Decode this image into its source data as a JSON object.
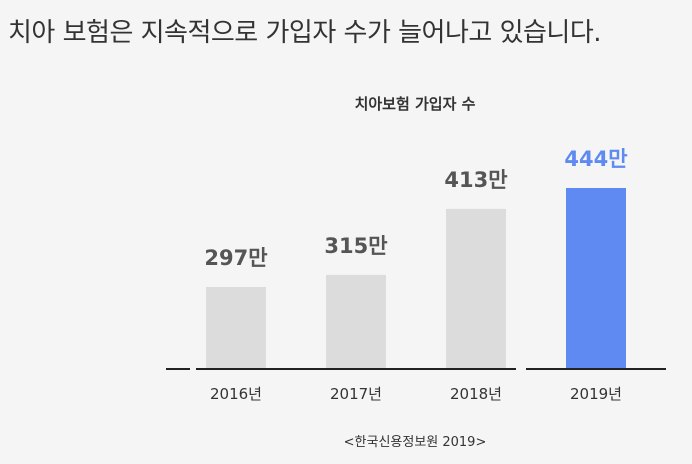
{
  "headline": "치아 보험은 지속적으로 가입자 수가 늘어나고 있습니다.",
  "colors": {
    "bar_default": "#dcdcdc",
    "bar_highlight": "#5f8af2",
    "label_default": "#555555",
    "label_highlight": "#5f8af2",
    "axis": "#222222"
  },
  "chart_data": {
    "type": "bar",
    "title": "치아보험 가입자 수",
    "categories": [
      "2016년",
      "2017년",
      "2018년",
      "2019년"
    ],
    "values": [
      297,
      315,
      413,
      444
    ],
    "value_labels": [
      "297만",
      "315만",
      "413만",
      "444만"
    ],
    "unit": "만",
    "highlight_index": 3,
    "grid": false,
    "source": "<한국신용정보원 2019>"
  }
}
